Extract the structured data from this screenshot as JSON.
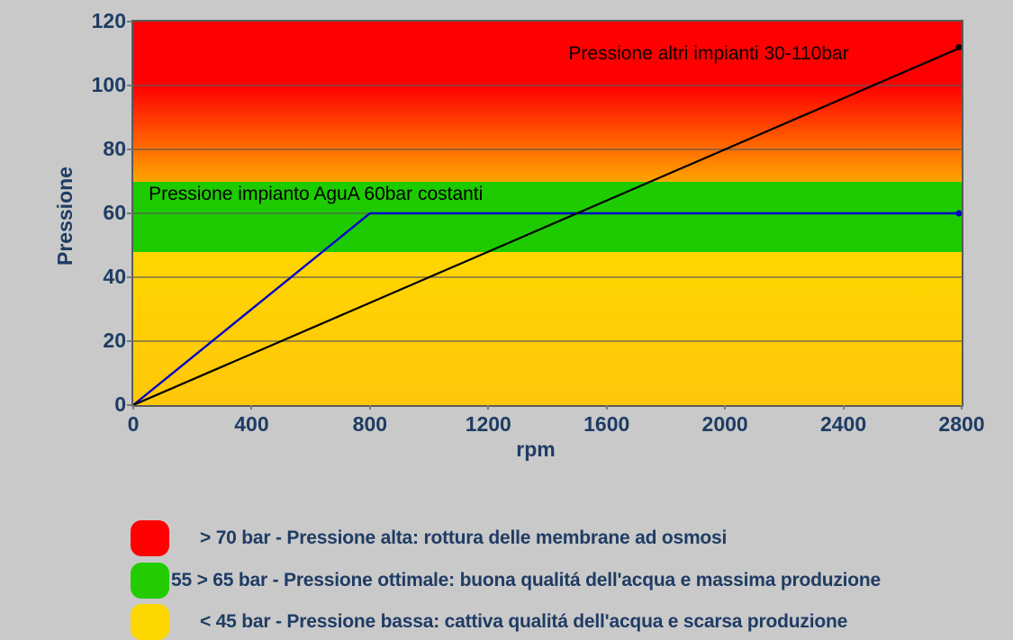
{
  "page": {
    "background_color": "#c9c9c9",
    "text_color": "#1f3c64"
  },
  "chart_data": {
    "type": "line",
    "title": "",
    "xlabel": "rpm",
    "ylabel": "Pressione",
    "xlim": [
      0,
      2800
    ],
    "ylim": [
      0,
      120
    ],
    "x_ticks": [
      0,
      400,
      800,
      1200,
      1600,
      2000,
      2400,
      2800
    ],
    "y_ticks": [
      0,
      20,
      40,
      60,
      80,
      100,
      120
    ],
    "grid": "horizontal",
    "grid_color": "rgba(90,90,90,0.6)",
    "spine_color": "#5a5a5a",
    "series": [
      {
        "name": "Pressione impianto AguA 60bar costanti",
        "color": "#0000cd",
        "width": 2.4,
        "end_dot": true,
        "points": [
          [
            0,
            0
          ],
          [
            800,
            60
          ],
          [
            2800,
            60
          ]
        ]
      },
      {
        "name": "Pressione altri impianti 30-110bar",
        "color": "#000000",
        "width": 2.2,
        "end_dot": true,
        "points": [
          [
            0,
            0
          ],
          [
            2800,
            112
          ]
        ]
      }
    ],
    "annotations": [
      {
        "text": "Pressione altri impianti 30-110bar",
        "x": 1945,
        "y": 110,
        "anchor": "middle",
        "color": "#0d0000"
      },
      {
        "text": "Pressione impianto AguA 60bar costanti",
        "x": 52,
        "y": 66,
        "anchor": "start",
        "color": "#000000"
      }
    ],
    "bands": [
      {
        "from": 100,
        "to": 120,
        "color_top": "#ff0000",
        "color_bottom": "#ff0000"
      },
      {
        "from": 70,
        "to": 100,
        "color_top": "#ff0000",
        "color_bottom": "#ffa500"
      },
      {
        "from": 48,
        "to": 70,
        "color_top": "#1dcb00",
        "color_bottom": "#1dcb00"
      },
      {
        "from": 0,
        "to": 48,
        "color_top": "#ffd600",
        "color_bottom": "#ffc60a"
      }
    ]
  },
  "legend": {
    "items": [
      {
        "swatch_color": "#ff0000",
        "label": "> 70 bar - Pressione alta: rottura delle membrane ad osmosi"
      },
      {
        "swatch_color": "#22cc00",
        "label": "55 > 65 bar - Pressione ottimale: buona qualitá dell'acqua e massima produzione"
      },
      {
        "swatch_color": "#ffd700",
        "label": "< 45 bar - Pressione bassa: cattiva qualitá dell'acqua e scarsa produzione"
      }
    ]
  }
}
